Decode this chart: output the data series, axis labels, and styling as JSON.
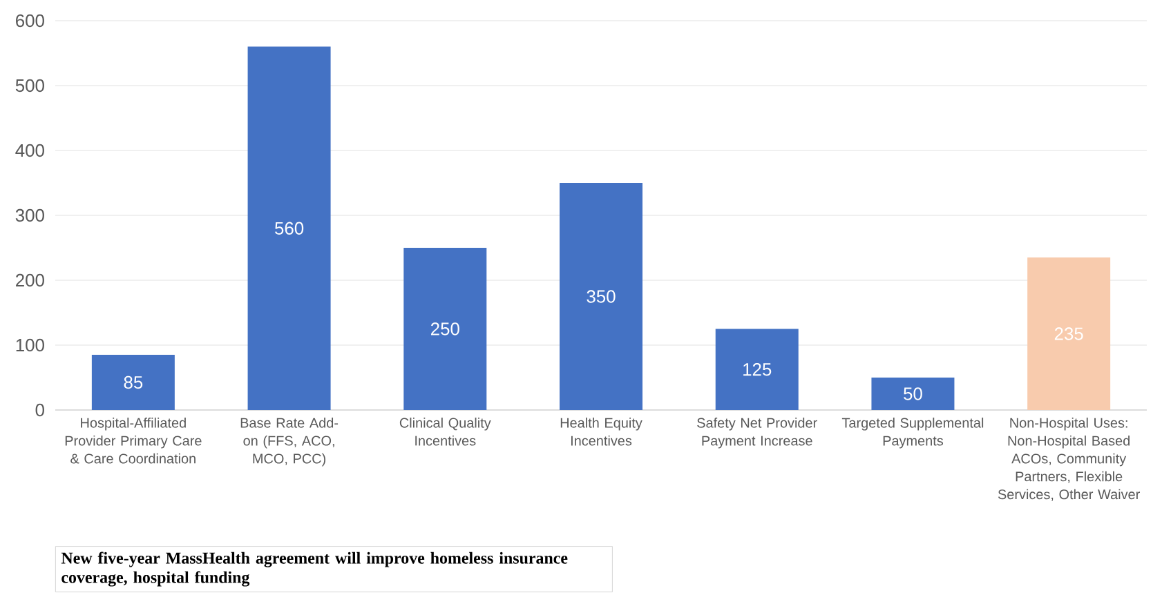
{
  "chart_data": {
    "type": "bar",
    "categories": [
      "Hospital-Affiliated Provider Primary Care & Care Coordination",
      "Base Rate Add-on (FFS, ACO, MCO, PCC)",
      "Clinical Quality Incentives",
      "Health Equity Incentives",
      "Safety Net Provider Payment Increase",
      "Targeted Supplemental Payments",
      "Non-Hospital Uses: Non-Hospital Based ACOs, Community Partners, Flexible Services, Other Waiver"
    ],
    "values": [
      85,
      560,
      250,
      350,
      125,
      50,
      235
    ],
    "colors": [
      "#4472c4",
      "#4472c4",
      "#4472c4",
      "#4472c4",
      "#4472c4",
      "#4472c4",
      "#f8cbad"
    ],
    "ylim": [
      0,
      600
    ],
    "yticks": [
      0,
      100,
      200,
      300,
      400,
      500,
      600
    ],
    "grid": "y",
    "data_labels": true,
    "annotations": [
      "New five-year MassHealth agreement will improve homeless insurance coverage, hospital funding"
    ]
  }
}
